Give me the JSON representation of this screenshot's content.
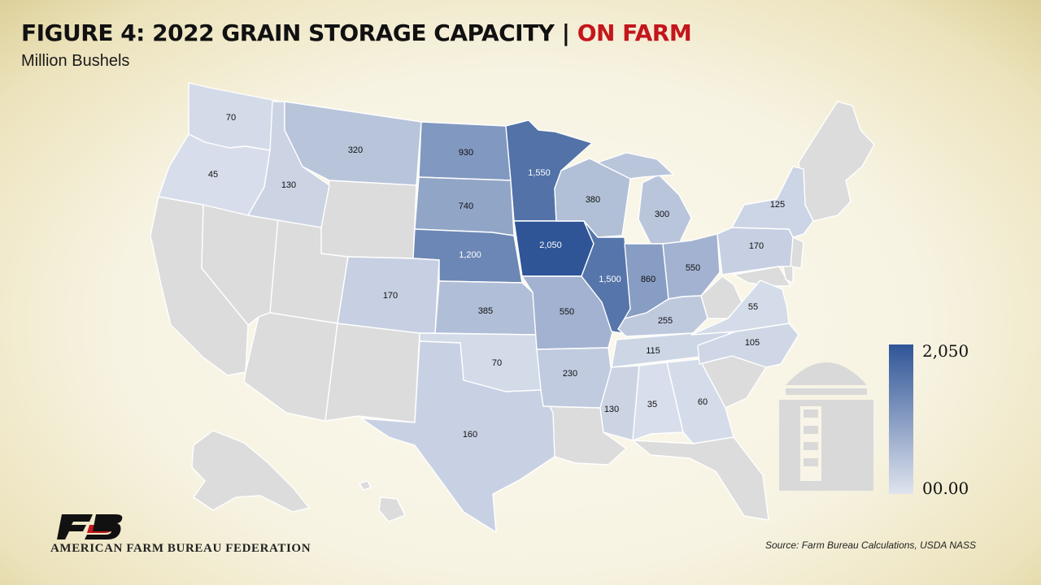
{
  "header": {
    "title": "FIGURE 4: 2022 GRAIN STORAGE CAPACITY |",
    "title_accent": "ON FARM",
    "subtitle": "Million Bushels"
  },
  "legend": {
    "max_label": "2,050",
    "min_label": "00.00",
    "max_value": 2050,
    "min_value": 0
  },
  "colors": {
    "high": "#2f5597",
    "low": "#dfe4ee",
    "no_data": "#dcdcdc",
    "accent": "#c4161c"
  },
  "source": "Source: Farm Bureau Calculations, USDA NASS",
  "organization": "AMERICAN FARM BUREAU FEDERATION",
  "states": [
    {
      "id": "WA",
      "label": "70",
      "value": 70
    },
    {
      "id": "OR",
      "label": "45",
      "value": 45
    },
    {
      "id": "ID",
      "label": "130",
      "value": 130
    },
    {
      "id": "MT",
      "label": "320",
      "value": 320
    },
    {
      "id": "ND",
      "label": "930",
      "value": 930
    },
    {
      "id": "SD",
      "label": "740",
      "value": 740
    },
    {
      "id": "NE",
      "label": "1,200",
      "value": 1200
    },
    {
      "id": "KS",
      "label": "385",
      "value": 385
    },
    {
      "id": "CO",
      "label": "170",
      "value": 170
    },
    {
      "id": "OK",
      "label": "70",
      "value": 70
    },
    {
      "id": "TX",
      "label": "160",
      "value": 160
    },
    {
      "id": "MN",
      "label": "1,550",
      "value": 1550
    },
    {
      "id": "IA",
      "label": "2,050",
      "value": 2050
    },
    {
      "id": "MO",
      "label": "550",
      "value": 550
    },
    {
      "id": "AR",
      "label": "230",
      "value": 230
    },
    {
      "id": "WI",
      "label": "380",
      "value": 380
    },
    {
      "id": "IL",
      "label": "1,500",
      "value": 1500
    },
    {
      "id": "MI",
      "label": "300",
      "value": 300
    },
    {
      "id": "IN",
      "label": "860",
      "value": 860
    },
    {
      "id": "OH",
      "label": "550",
      "value": 550
    },
    {
      "id": "KY",
      "label": "255",
      "value": 255
    },
    {
      "id": "TN",
      "label": "115",
      "value": 115
    },
    {
      "id": "MS",
      "label": "130",
      "value": 130
    },
    {
      "id": "AL",
      "label": "35",
      "value": 35
    },
    {
      "id": "GA",
      "label": "60",
      "value": 60
    },
    {
      "id": "NC",
      "label": "105",
      "value": 105
    },
    {
      "id": "VA",
      "label": "55",
      "value": 55
    },
    {
      "id": "PA",
      "label": "170",
      "value": 170
    },
    {
      "id": "NY",
      "label": "125",
      "value": 125
    }
  ]
}
